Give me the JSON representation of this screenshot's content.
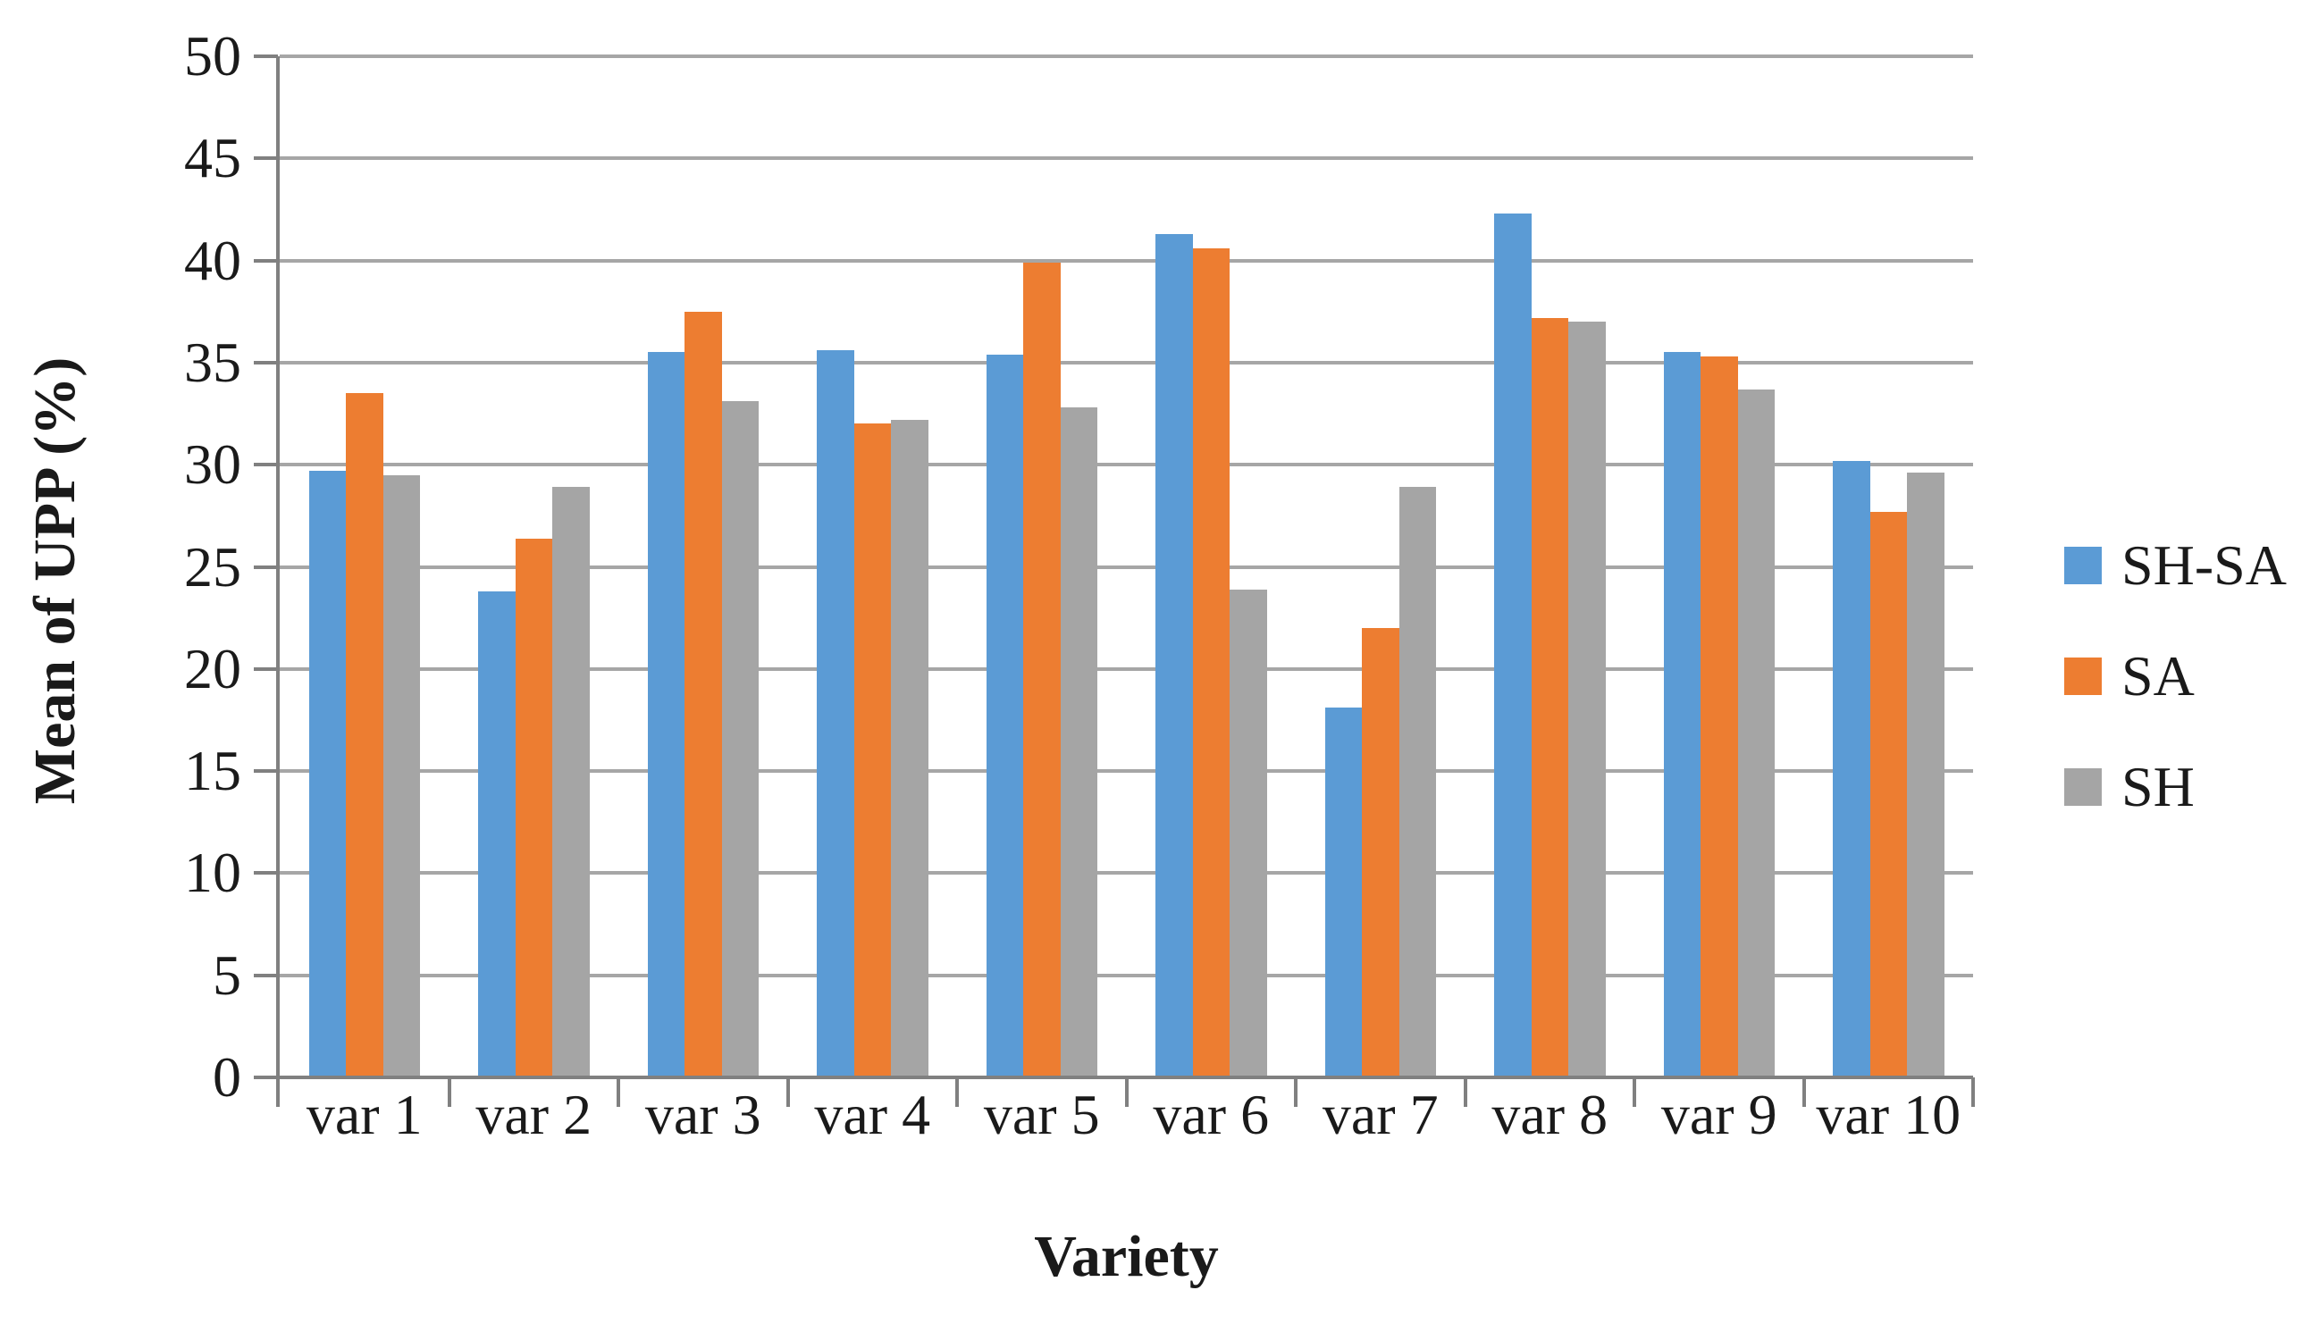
{
  "chart_data": {
    "type": "bar",
    "title": "",
    "xlabel": "Variety",
    "ylabel": "Mean of UPP (%)",
    "categories": [
      "var 1",
      "var 2",
      "var 3",
      "var 4",
      "var 5",
      "var 6",
      "var 7",
      "var 8",
      "var 9",
      "var 10"
    ],
    "series": [
      {
        "name": "SH-SA",
        "color": "#5B9BD5",
        "values": [
          29.7,
          23.8,
          35.5,
          35.6,
          35.4,
          41.3,
          18.1,
          42.3,
          35.5,
          30.2
        ]
      },
      {
        "name": "SA",
        "color": "#ED7D31",
        "values": [
          33.5,
          26.4,
          37.5,
          32.0,
          39.9,
          40.6,
          22.0,
          37.2,
          35.3,
          27.7
        ]
      },
      {
        "name": "SH",
        "color": "#A5A5A5",
        "values": [
          29.5,
          28.9,
          33.1,
          32.2,
          32.8,
          23.9,
          28.9,
          37.0,
          33.7,
          29.6
        ]
      }
    ],
    "ylim": [
      0,
      50
    ],
    "y_tick_step": 5,
    "y_ticks": [
      "0",
      "5",
      "10",
      "15",
      "20",
      "25",
      "30",
      "35",
      "40",
      "45",
      "50"
    ],
    "grid": true,
    "legend_position": "right",
    "colors": {
      "gridline": "#A6A6A6",
      "axis": "#808080",
      "text": "#1a1a1a",
      "background": "#ffffff"
    }
  }
}
